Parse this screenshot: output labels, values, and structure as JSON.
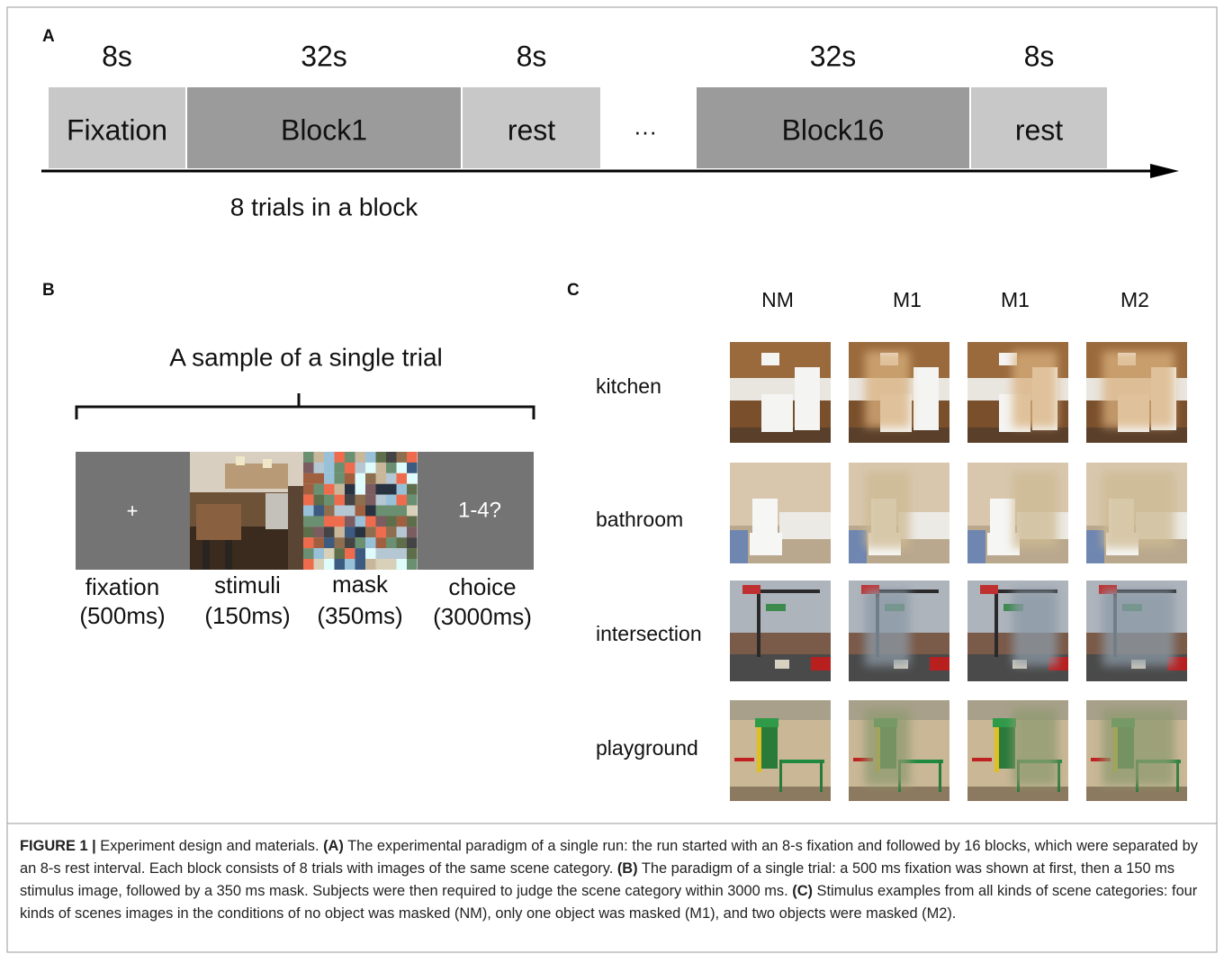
{
  "panel_a": {
    "label": "A",
    "segments": [
      {
        "duration": "8s",
        "label": "Fixation"
      },
      {
        "duration": "32s",
        "label": "Block1"
      },
      {
        "duration": "8s",
        "label": "rest"
      },
      {
        "duration": "32s",
        "label": "Block16"
      },
      {
        "duration": "8s",
        "label": "rest"
      }
    ],
    "ellipsis": "···",
    "note": "8 trials in a block"
  },
  "panel_b": {
    "label": "B",
    "title": "A sample of a single trial",
    "fixation_symbol": "+",
    "choice_prompt": "1-4?",
    "steps": [
      {
        "name": "fixation",
        "duration": "(500ms)"
      },
      {
        "name": "stimuli",
        "duration": "(150ms)"
      },
      {
        "name": "mask",
        "duration": "(350ms)"
      },
      {
        "name": "choice",
        "duration": "(3000ms)"
      }
    ]
  },
  "panel_c": {
    "label": "C",
    "columns": [
      "NM",
      "M1",
      "M1",
      "M2"
    ],
    "rows": [
      "kitchen",
      "bathroom",
      "intersection",
      "playground"
    ]
  },
  "caption": {
    "label": "FIGURE 1 |",
    "intro": " Experiment design and materials. ",
    "parts": [
      {
        "tag": "(A)",
        "text": " The experimental paradigm of a single run: the run started with an 8-s fixation and followed by 16 blocks, which were separated by an 8-s rest interval. Each block consists of 8 trials with images of the same scene category. "
      },
      {
        "tag": "(B)",
        "text": " The paradigm of a single trial: a 500 ms fixation was shown at first, then a 150 ms stimulus image, followed by a 350 ms mask. Subjects were then required to judge the scene category within 3000 ms. "
      },
      {
        "tag": "(C)",
        "text": " Stimulus examples from all kinds of scene categories: four kinds of scenes images in the conditions of no object was masked (NM), only one object was masked (M1), and two objects were masked (M2)."
      }
    ]
  }
}
